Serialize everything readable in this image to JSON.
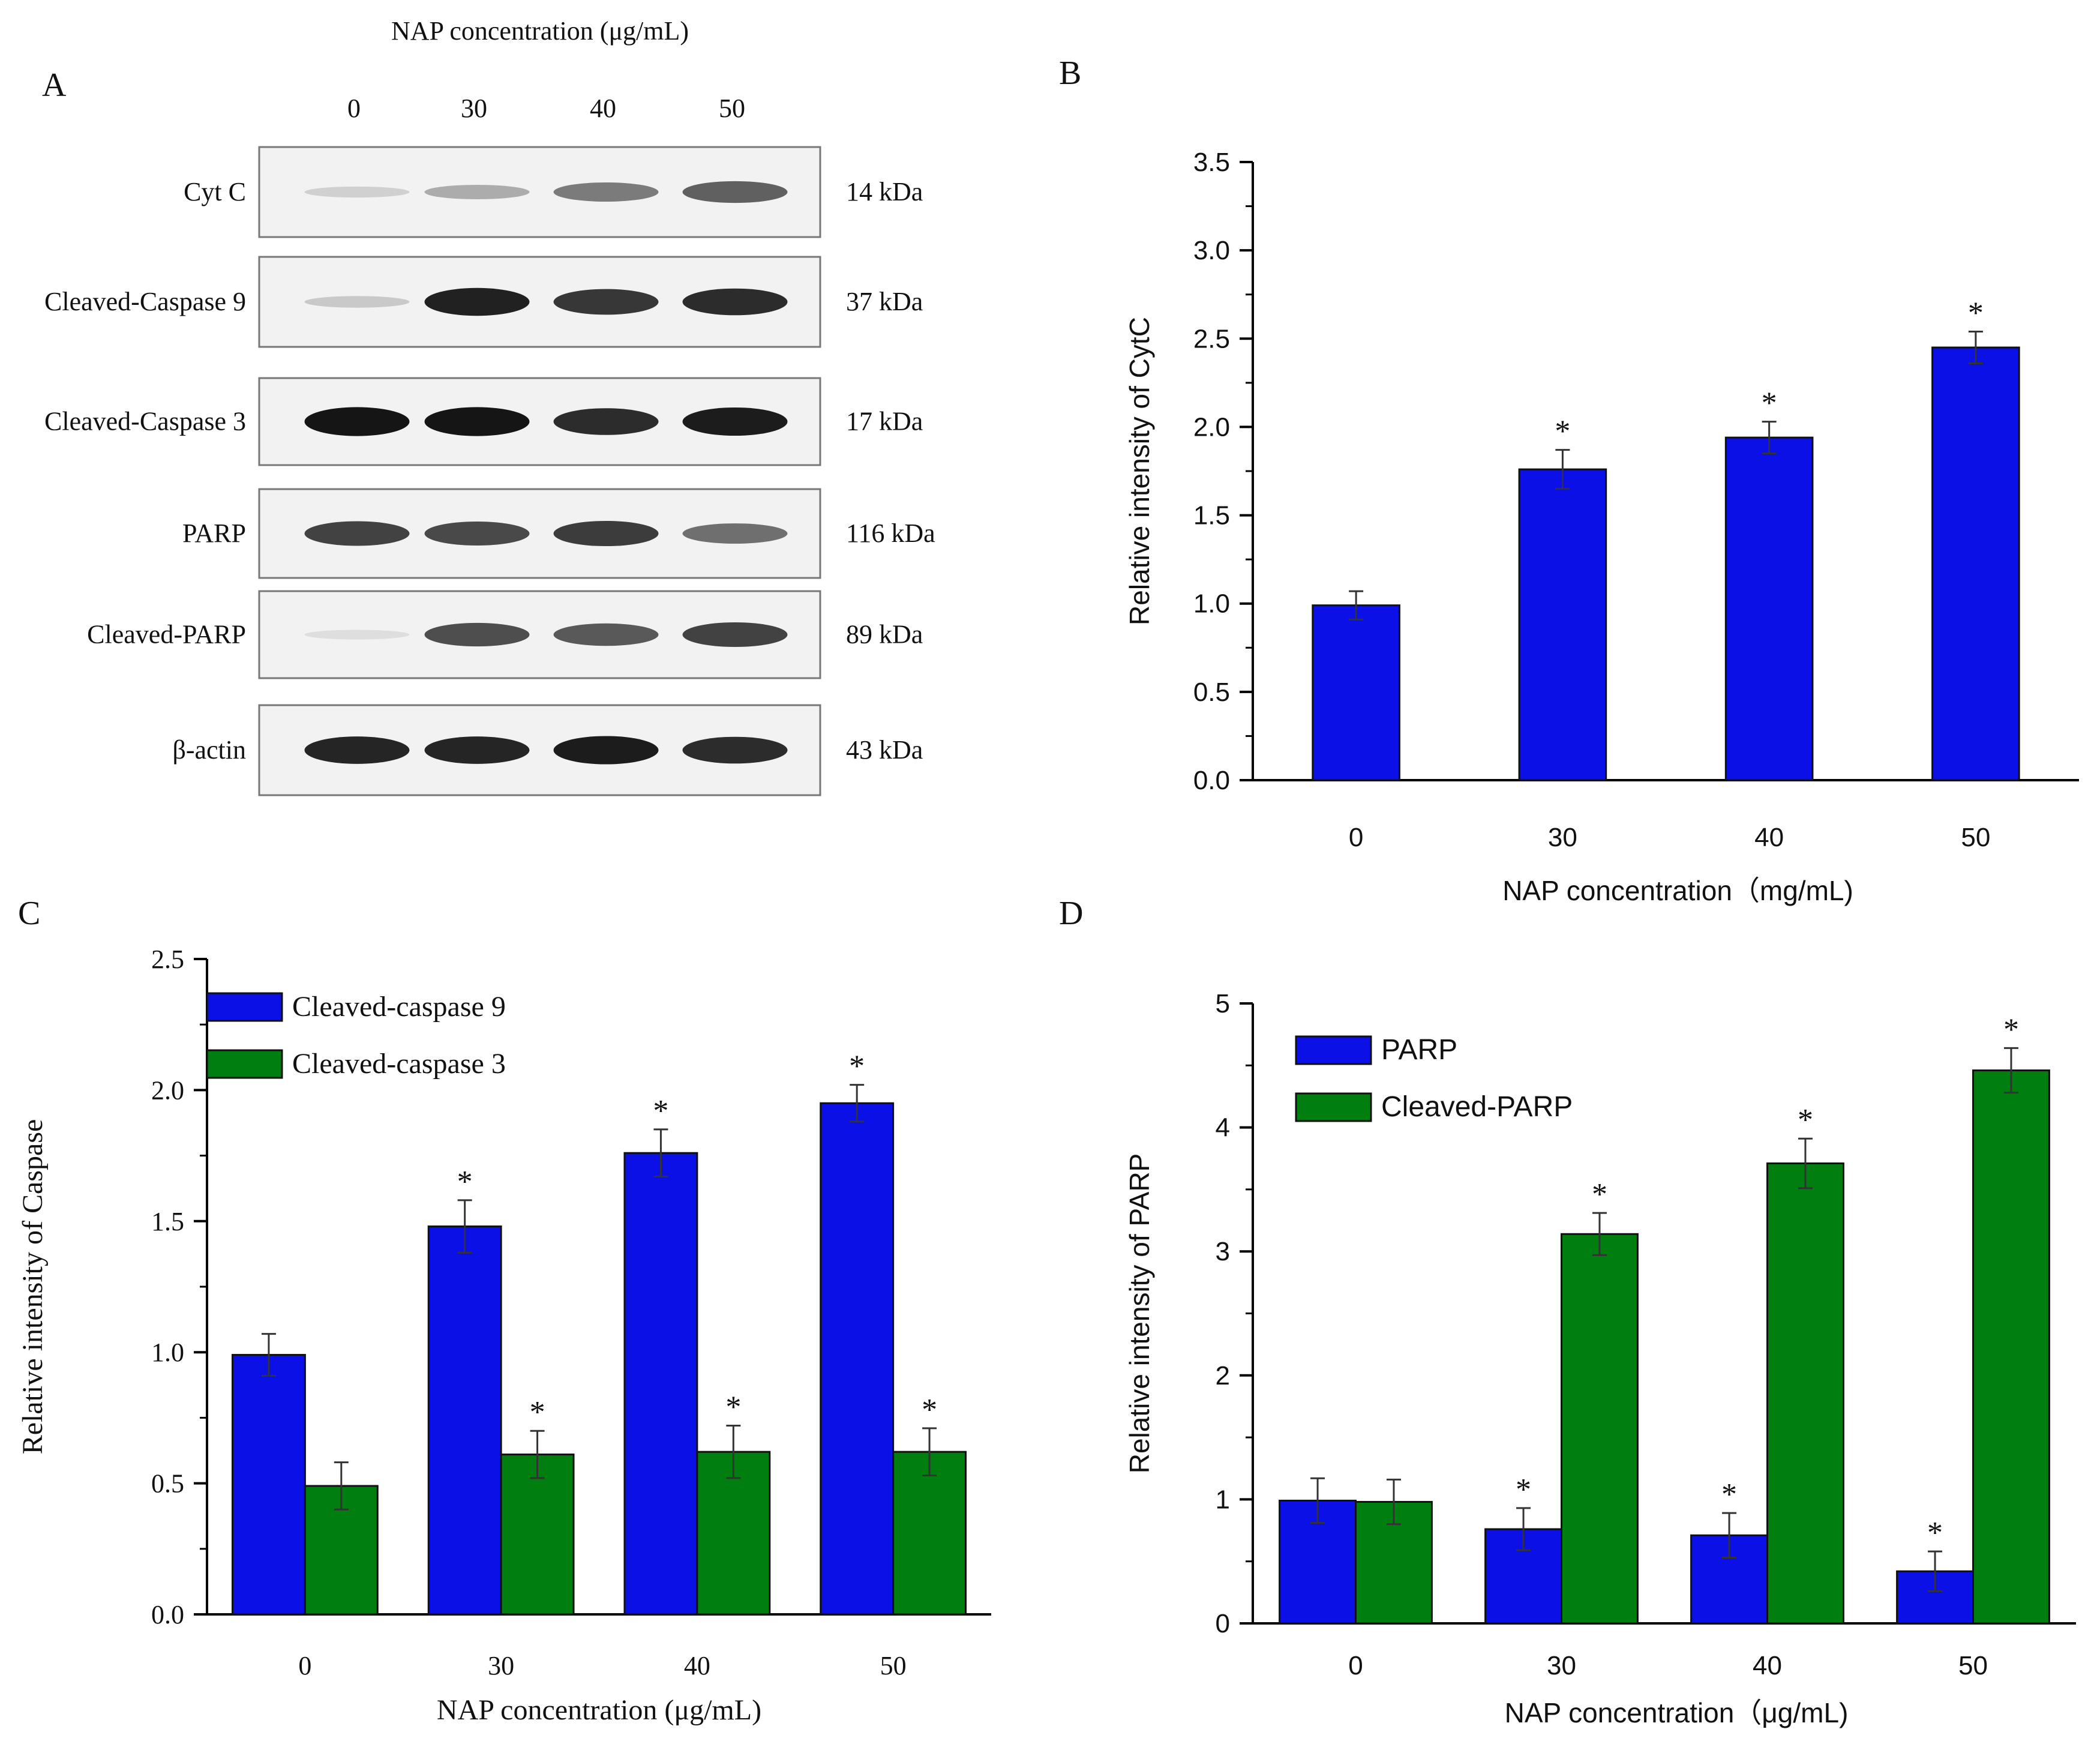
{
  "blot": {
    "panel_label": "A",
    "header": "NAP concentration (μg/mL)",
    "lanes": [
      "0",
      "30",
      "40",
      "50"
    ],
    "rows": [
      {
        "protein": "Cyt C",
        "kda": "14 kDa",
        "intensity": [
          0.12,
          0.28,
          0.5,
          0.62
        ]
      },
      {
        "protein": "Cleaved-Caspase 9",
        "kda": "37 kDa",
        "intensity": [
          0.15,
          0.9,
          0.8,
          0.85
        ]
      },
      {
        "protein": "Cleaved-Caspase 3",
        "kda": "17 kDa",
        "intensity": [
          0.95,
          0.95,
          0.85,
          0.92
        ]
      },
      {
        "protein": "PARP",
        "kda": "116 kDa",
        "intensity": [
          0.75,
          0.72,
          0.78,
          0.55
        ]
      },
      {
        "protein": "Cleaved-PARP",
        "kda": "89 kDa",
        "intensity": [
          0.06,
          0.7,
          0.65,
          0.75
        ]
      },
      {
        "protein": "β-actin",
        "kda": "43 kDa",
        "intensity": [
          0.88,
          0.88,
          0.92,
          0.85
        ]
      }
    ]
  },
  "chart_data": [
    {
      "panel_label": "B",
      "type": "bar",
      "title": "",
      "categories": [
        "0",
        "30",
        "40",
        "50"
      ],
      "series": [
        {
          "name": "CytC",
          "color": "#0a10e6",
          "values": [
            0.99,
            1.76,
            1.94,
            2.45
          ],
          "errors": [
            0.08,
            0.11,
            0.09,
            0.09
          ],
          "sig": [
            "",
            "*",
            "*",
            "*"
          ]
        }
      ],
      "xlabel": "NAP concentration（mg/mL)",
      "ylabel": "Relative intensity of CytC",
      "ylim": [
        0,
        3.5
      ],
      "yticks": [
        "0.0",
        "0.5",
        "1.0",
        "1.5",
        "2.0",
        "2.5",
        "3.0",
        "3.5"
      ],
      "legend": null
    },
    {
      "panel_label": "C",
      "type": "bar",
      "title": "",
      "categories": [
        "0",
        "30",
        "40",
        "50"
      ],
      "series": [
        {
          "name": "Cleaved-caspase 9",
          "color": "#0a10e6",
          "values": [
            0.99,
            1.48,
            1.76,
            1.95
          ],
          "errors": [
            0.08,
            0.1,
            0.09,
            0.07
          ],
          "sig": [
            "",
            "*",
            "*",
            "*"
          ]
        },
        {
          "name": "Cleaved-caspase 3",
          "color": "#007f10",
          "values": [
            0.49,
            0.61,
            0.62,
            0.62
          ],
          "errors": [
            0.09,
            0.09,
            0.1,
            0.09
          ],
          "sig": [
            "",
            "*",
            "*",
            "*"
          ]
        }
      ],
      "xlabel": "NAP concentration (μg/mL)",
      "ylabel": "Relative intensity of Caspase",
      "ylim": [
        0,
        2.5
      ],
      "yticks": [
        "0.0",
        "0.5",
        "1.0",
        "1.5",
        "2.0",
        "2.5"
      ],
      "legend": "top-left"
    },
    {
      "panel_label": "D",
      "type": "bar",
      "title": "",
      "categories": [
        "0",
        "30",
        "40",
        "50"
      ],
      "series": [
        {
          "name": "PARP",
          "color": "#0a10e6",
          "values": [
            0.99,
            0.76,
            0.71,
            0.42
          ],
          "errors": [
            0.18,
            0.17,
            0.18,
            0.16
          ],
          "sig": [
            "",
            "*",
            "*",
            "*"
          ]
        },
        {
          "name": "Cleaved-PARP",
          "color": "#007f10",
          "values": [
            0.98,
            3.14,
            3.71,
            4.46
          ],
          "errors": [
            0.18,
            0.17,
            0.2,
            0.18
          ],
          "sig": [
            "",
            "*",
            "*",
            "*"
          ]
        }
      ],
      "xlabel": "NAP concentration（μg/mL)",
      "ylabel": "Relative intensity of PARP",
      "ylim": [
        0,
        5
      ],
      "yticks": [
        "0",
        "1",
        "2",
        "3",
        "4",
        "5"
      ],
      "legend": "top-left"
    }
  ]
}
